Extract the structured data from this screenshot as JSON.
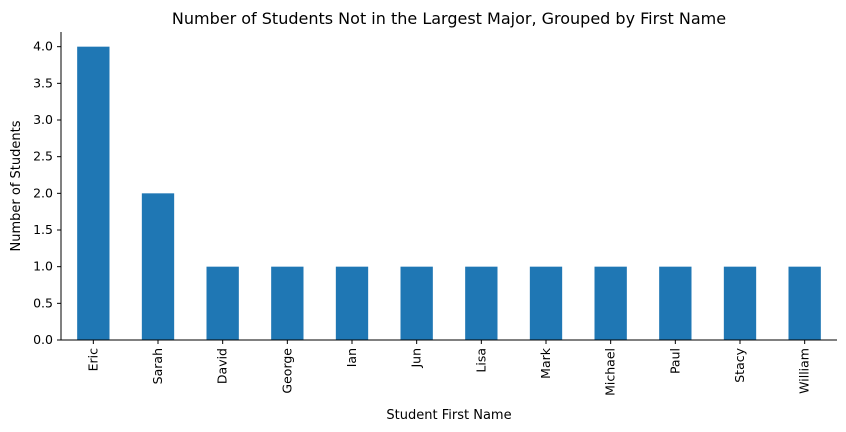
{
  "chart_data": {
    "type": "bar",
    "title": "Number of Students Not in the Largest Major, Grouped by First Name",
    "xlabel": "Student First Name",
    "ylabel": "Number of Students",
    "categories": [
      "Eric",
      "Sarah",
      "David",
      "George",
      "Ian",
      "Jun",
      "Lisa",
      "Mark",
      "Michael",
      "Paul",
      "Stacy",
      "William"
    ],
    "values": [
      4,
      2,
      1,
      1,
      1,
      1,
      1,
      1,
      1,
      1,
      1,
      1
    ],
    "ylim": [
      0,
      4.2
    ],
    "yticks": [
      "0.0",
      "0.5",
      "1.0",
      "1.5",
      "2.0",
      "2.5",
      "3.0",
      "3.5",
      "4.0"
    ],
    "bar_color": "#1f77b4",
    "grid": false,
    "legend": "none"
  }
}
